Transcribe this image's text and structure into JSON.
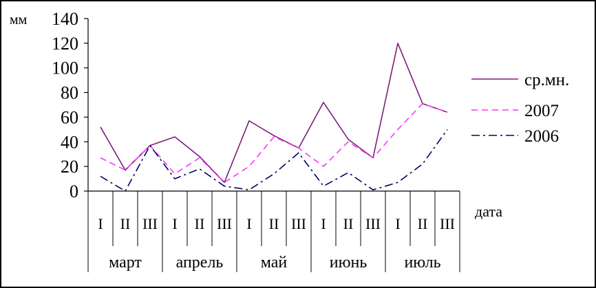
{
  "chart_data": {
    "type": "line",
    "ylabel": "мм",
    "xlabel": "дата",
    "ylim": [
      0,
      140
    ],
    "yticks": [
      "0",
      "20",
      "40",
      "60",
      "80",
      "100",
      "120",
      "140"
    ],
    "decades": [
      "I",
      "II",
      "III",
      "I",
      "II",
      "III",
      "I",
      "II",
      "III",
      "I",
      "II",
      "III",
      "I",
      "II",
      "III"
    ],
    "months": [
      "март",
      "апрель",
      "май",
      "июнь",
      "июль"
    ],
    "series": [
      {
        "name": "ср.мн.",
        "color": "#7a1e7a",
        "style": "solid",
        "values": [
          52,
          17,
          37,
          44,
          28,
          7,
          57,
          45,
          35,
          72,
          42,
          27,
          120,
          71,
          64
        ]
      },
      {
        "name": "2007",
        "color": "#ff33ff",
        "style": "dashed",
        "values": [
          27,
          17,
          37,
          14,
          27,
          7,
          20,
          44,
          35,
          20,
          40,
          27,
          50,
          71,
          64
        ]
      },
      {
        "name": "2006",
        "color": "#000066",
        "style": "dashdot",
        "values": [
          12,
          0,
          37,
          10,
          18,
          4,
          1,
          14,
          31,
          4,
          15,
          1,
          7,
          22,
          50
        ]
      }
    ],
    "legend_position": "right"
  }
}
